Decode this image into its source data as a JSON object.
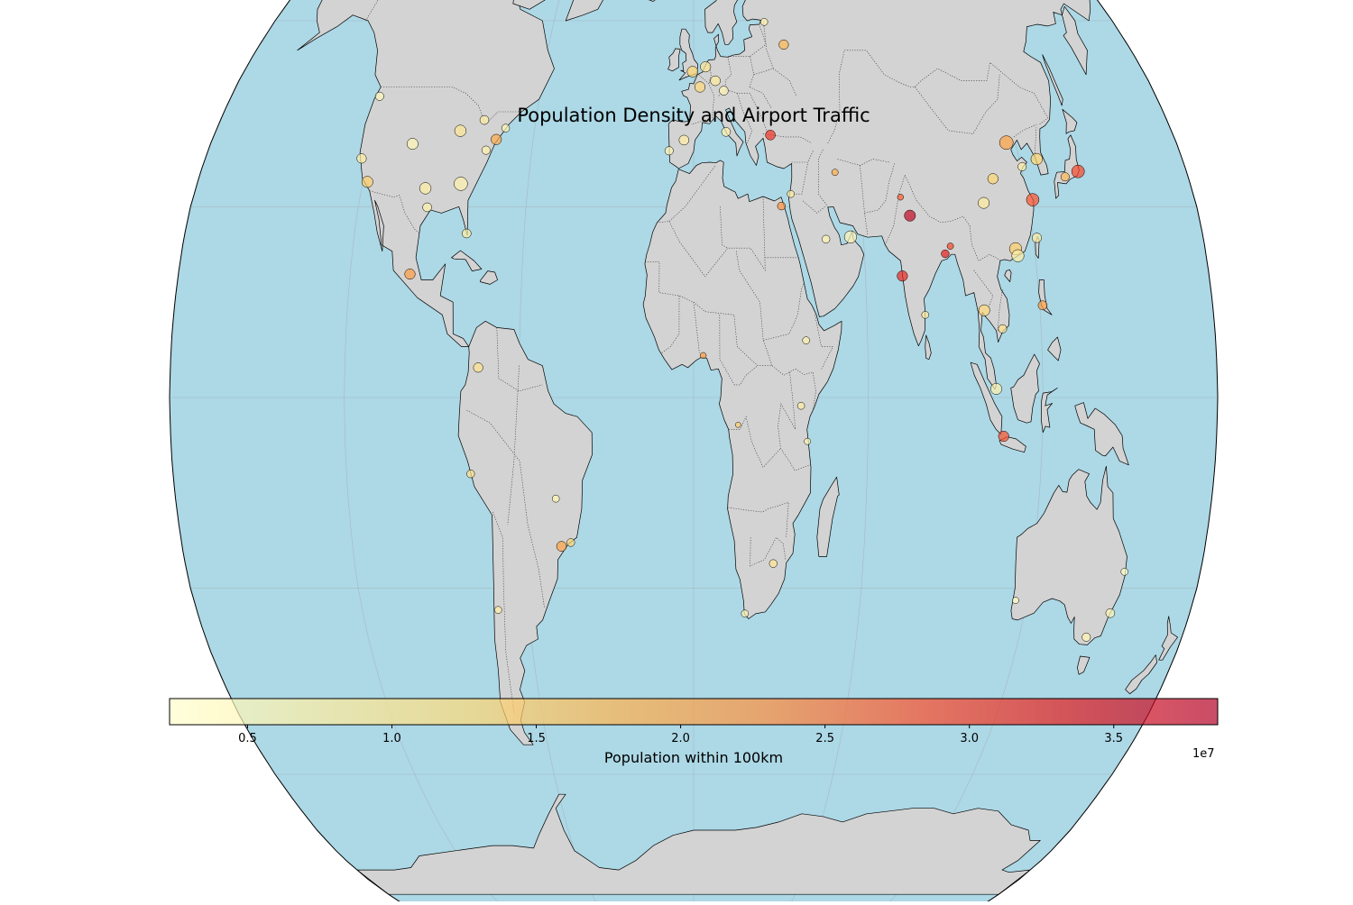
{
  "chart_data": {
    "type": "scatter",
    "projection": "Robinson",
    "title": "Population Density and Airport Traffic",
    "colorbar": {
      "label": "Population within 100km",
      "exponent_label": "1e7",
      "min": 0.23,
      "max": 3.86,
      "ticks": [
        "0.5",
        "1.0",
        "1.5",
        "2.0",
        "2.5",
        "3.0",
        "3.5"
      ],
      "tick_values": [
        0.5,
        1.0,
        1.5,
        2.0,
        2.5,
        3.0,
        3.5
      ],
      "colormap": [
        "#ffffcc",
        "#ffeda0",
        "#fed976",
        "#feb24c",
        "#fd8d3c",
        "#fc4e2a",
        "#e31a1c",
        "#b10026"
      ],
      "alpha": 0.7
    },
    "colors": {
      "ocean": "#add8e6",
      "land": "#d3d3d3",
      "coast": "#000000",
      "border": "#333333",
      "gridline": "#999999"
    },
    "gridlines": true,
    "points": [
      {
        "lon": -118.4,
        "lat": 33.9,
        "pop": 1.4,
        "traffic": 55
      },
      {
        "lon": -122.4,
        "lat": 37.6,
        "pop": 0.7,
        "traffic": 35
      },
      {
        "lon": -87.9,
        "lat": 41.98,
        "pop": 0.9,
        "traffic": 60
      },
      {
        "lon": -84.4,
        "lat": 33.6,
        "pop": 0.6,
        "traffic": 90
      },
      {
        "lon": -97.0,
        "lat": 32.9,
        "pop": 0.7,
        "traffic": 60
      },
      {
        "lon": -73.8,
        "lat": 40.6,
        "pop": 1.9,
        "traffic": 45
      },
      {
        "lon": -77.0,
        "lat": 38.9,
        "pop": 0.6,
        "traffic": 25
      },
      {
        "lon": -71.0,
        "lat": 42.4,
        "pop": 0.5,
        "traffic": 20
      },
      {
        "lon": -80.3,
        "lat": 25.8,
        "pop": 0.7,
        "traffic": 30
      },
      {
        "lon": -95.3,
        "lat": 29.9,
        "pop": 0.6,
        "traffic": 30
      },
      {
        "lon": -104.7,
        "lat": 39.9,
        "pop": 0.5,
        "traffic": 55
      },
      {
        "lon": -0.45,
        "lat": 51.5,
        "pop": 1.3,
        "traffic": 50
      },
      {
        "lon": 2.5,
        "lat": 49.0,
        "pop": 1.2,
        "traffic": 45
      },
      {
        "lon": 8.6,
        "lat": 50.0,
        "pop": 0.8,
        "traffic": 40
      },
      {
        "lon": 4.8,
        "lat": 52.3,
        "pop": 0.9,
        "traffic": 45
      },
      {
        "lon": 11.8,
        "lat": 48.4,
        "pop": 0.5,
        "traffic": 30
      },
      {
        "lon": -3.6,
        "lat": 40.5,
        "pop": 0.7,
        "traffic": 40
      },
      {
        "lon": 12.2,
        "lat": 41.8,
        "pop": 0.6,
        "traffic": 30
      },
      {
        "lon": 28.8,
        "lat": 41.3,
        "pop": 3.1,
        "traffic": 40
      },
      {
        "lon": 37.4,
        "lat": 55.97,
        "pop": 1.7,
        "traffic": 35
      },
      {
        "lon": 30.3,
        "lat": 59.8,
        "pop": 0.6,
        "traffic": 15
      },
      {
        "lon": -9.1,
        "lat": 38.8,
        "pop": 0.5,
        "traffic": 25
      },
      {
        "lon": 55.4,
        "lat": 25.25,
        "pop": 0.5,
        "traffic": 70
      },
      {
        "lon": 46.7,
        "lat": 24.9,
        "pop": 0.5,
        "traffic": 20
      },
      {
        "lon": 31.4,
        "lat": 30.1,
        "pop": 2.2,
        "traffic": 20
      },
      {
        "lon": 35.0,
        "lat": 32.0,
        "pop": 0.8,
        "traffic": 15
      },
      {
        "lon": 51.6,
        "lat": 35.4,
        "pop": 1.8,
        "traffic": 10
      },
      {
        "lon": 77.1,
        "lat": 28.6,
        "pop": 3.7,
        "traffic": 55
      },
      {
        "lon": 72.9,
        "lat": 19.1,
        "pop": 3.2,
        "traffic": 45
      },
      {
        "lon": 88.4,
        "lat": 22.6,
        "pop": 3.3,
        "traffic": 20
      },
      {
        "lon": 90.4,
        "lat": 23.8,
        "pop": 2.9,
        "traffic": 10
      },
      {
        "lon": 74.4,
        "lat": 31.5,
        "pop": 2.7,
        "traffic": 8
      },
      {
        "lon": 80.2,
        "lat": 12.99,
        "pop": 0.8,
        "traffic": 15
      },
      {
        "lon": 116.6,
        "lat": 40.1,
        "pop": 2.0,
        "traffic": 95
      },
      {
        "lon": 121.8,
        "lat": 31.1,
        "pop": 2.8,
        "traffic": 75
      },
      {
        "lon": 113.3,
        "lat": 23.4,
        "pop": 1.4,
        "traffic": 70
      },
      {
        "lon": 113.9,
        "lat": 22.3,
        "pop": 0.7,
        "traffic": 70
      },
      {
        "lon": 104.0,
        "lat": 30.6,
        "pop": 0.8,
        "traffic": 55
      },
      {
        "lon": 108.8,
        "lat": 34.4,
        "pop": 1.3,
        "traffic": 45
      },
      {
        "lon": 120.4,
        "lat": 36.3,
        "pop": 0.7,
        "traffic": 25
      },
      {
        "lon": 126.4,
        "lat": 37.5,
        "pop": 1.3,
        "traffic": 60
      },
      {
        "lon": 140.4,
        "lat": 35.55,
        "pop": 2.9,
        "traffic": 80
      },
      {
        "lon": 135.2,
        "lat": 34.7,
        "pop": 1.7,
        "traffic": 25
      },
      {
        "lon": 121.2,
        "lat": 25.1,
        "pop": 0.7,
        "traffic": 35
      },
      {
        "lon": 100.7,
        "lat": 13.7,
        "pop": 1.2,
        "traffic": 55
      },
      {
        "lon": 106.7,
        "lat": 10.8,
        "pop": 1.0,
        "traffic": 25
      },
      {
        "lon": 121.0,
        "lat": 14.5,
        "pop": 2.0,
        "traffic": 30
      },
      {
        "lon": 103.99,
        "lat": 1.36,
        "pop": 0.6,
        "traffic": 55
      },
      {
        "lon": 106.7,
        "lat": -6.1,
        "pop": 2.8,
        "traffic": 45
      },
      {
        "lon": 151.2,
        "lat": -33.9,
        "pop": 0.5,
        "traffic": 30
      },
      {
        "lon": 144.8,
        "lat": -37.7,
        "pop": 0.5,
        "traffic": 25
      },
      {
        "lon": 153.1,
        "lat": -27.4,
        "pop": 0.3,
        "traffic": 15
      },
      {
        "lon": 115.97,
        "lat": -31.9,
        "pop": 0.3,
        "traffic": 10
      },
      {
        "lon": 3.3,
        "lat": 6.6,
        "pop": 2.1,
        "traffic": 8
      },
      {
        "lon": 28.2,
        "lat": -26.1,
        "pop": 0.9,
        "traffic": 20
      },
      {
        "lon": 18.6,
        "lat": -33.97,
        "pop": 0.5,
        "traffic": 15
      },
      {
        "lon": 38.8,
        "lat": 8.98,
        "pop": 0.6,
        "traffic": 15
      },
      {
        "lon": 36.9,
        "lat": -1.3,
        "pop": 0.7,
        "traffic": 15
      },
      {
        "lon": 39.2,
        "lat": -6.9,
        "pop": 0.5,
        "traffic": 10
      },
      {
        "lon": 15.3,
        "lat": -4.3,
        "pop": 1.4,
        "traffic": 5
      },
      {
        "lon": -46.5,
        "lat": -23.4,
        "pop": 2.0,
        "traffic": 40
      },
      {
        "lon": -43.2,
        "lat": -22.8,
        "pop": 1.3,
        "traffic": 20
      },
      {
        "lon": -47.9,
        "lat": -15.9,
        "pop": 0.5,
        "traffic": 15
      },
      {
        "lon": -74.1,
        "lat": 4.7,
        "pop": 1.0,
        "traffic": 35
      },
      {
        "lon": -77.1,
        "lat": -12.0,
        "pop": 1.0,
        "traffic": 20
      },
      {
        "lon": -70.8,
        "lat": -33.4,
        "pop": 0.7,
        "traffic": 15
      },
      {
        "lon": -99.1,
        "lat": 19.4,
        "pop": 2.1,
        "traffic": 45
      },
      {
        "lon": -122.3,
        "lat": 47.5,
        "pop": 0.4,
        "traffic": 25
      },
      {
        "lon": -79.6,
        "lat": 43.7,
        "pop": 0.7,
        "traffic": 30
      }
    ]
  }
}
